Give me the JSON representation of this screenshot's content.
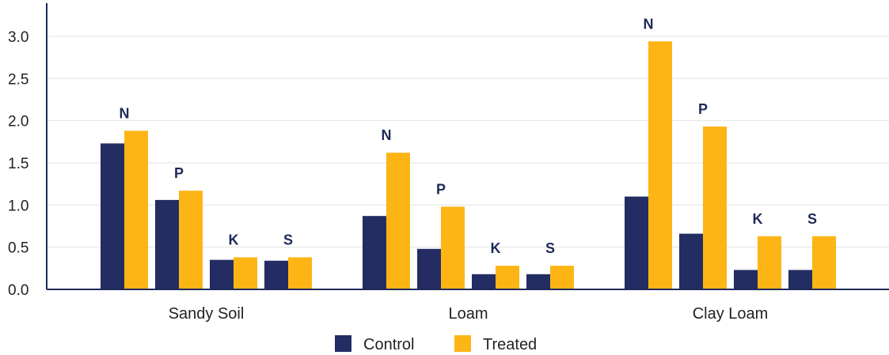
{
  "chart_data": {
    "type": "bar",
    "categories": [
      "Sandy Soil",
      "Loam",
      "Clay Loam"
    ],
    "nutrients": [
      "N",
      "P",
      "K",
      "S"
    ],
    "series": [
      {
        "name": "Control",
        "color": "#232d63",
        "values": [
          [
            1.73,
            1.06,
            0.35,
            0.34
          ],
          [
            0.87,
            0.48,
            0.18,
            0.18
          ],
          [
            1.1,
            0.66,
            0.23,
            0.23
          ]
        ]
      },
      {
        "name": "Treated",
        "color": "#fdb515",
        "values": [
          [
            1.88,
            1.17,
            0.38,
            0.38
          ],
          [
            1.62,
            0.98,
            0.28,
            0.28
          ],
          [
            2.94,
            1.93,
            0.63,
            0.63
          ]
        ]
      }
    ],
    "yticks": [
      "0.0",
      "0.5",
      "1.0",
      "1.5",
      "2.0",
      "2.5",
      "3.0"
    ],
    "ylim": [
      0,
      3.3
    ],
    "grid": true,
    "legend_position": "bottom-center"
  }
}
